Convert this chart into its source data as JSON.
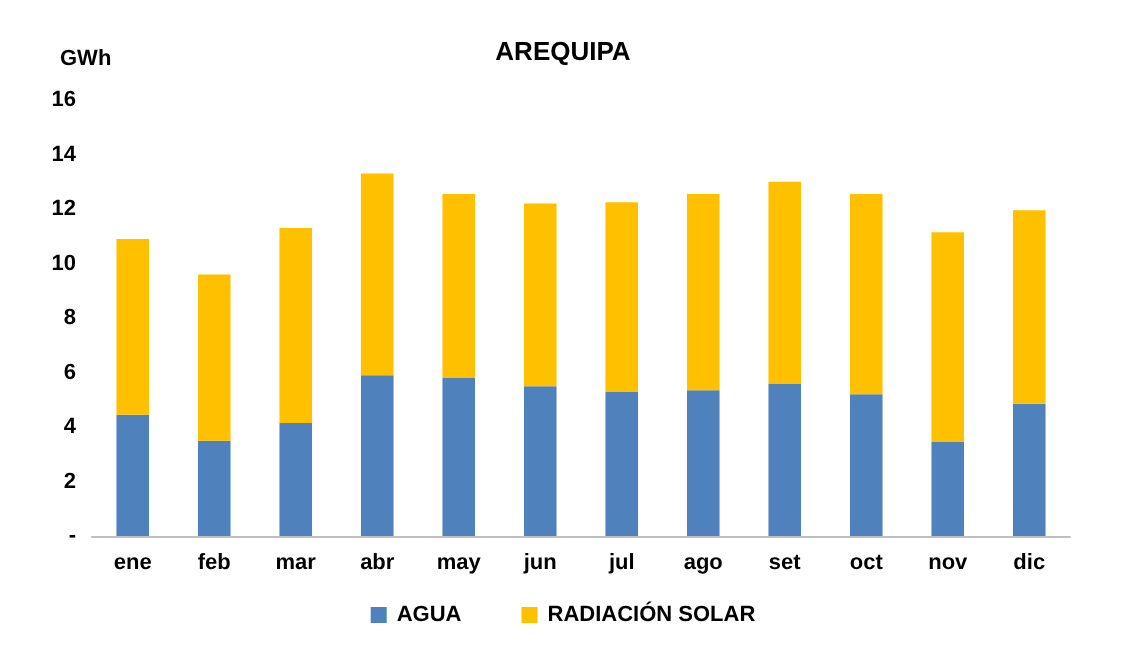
{
  "chart_data": {
    "type": "bar",
    "title": "AREQUIPA",
    "ylabel": "GWh",
    "stacked": true,
    "categories": [
      "ene",
      "feb",
      "mar",
      "abr",
      "may",
      "jun",
      "jul",
      "ago",
      "set",
      "oct",
      "nov",
      "dic"
    ],
    "series": [
      {
        "name": "AGUA",
        "color": "#4f81bd",
        "values": [
          4.45,
          3.5,
          4.15,
          5.9,
          5.8,
          5.5,
          5.3,
          5.35,
          5.6,
          5.2,
          3.45,
          4.85
        ]
      },
      {
        "name": "RADIACIÓN SOLAR",
        "color": "#ffc000",
        "values": [
          6.45,
          6.1,
          7.15,
          7.4,
          6.75,
          6.7,
          6.95,
          7.2,
          7.4,
          7.35,
          7.7,
          7.1
        ]
      }
    ],
    "ylim": [
      0,
      16
    ],
    "yticks": [
      {
        "value": 0,
        "label": "-"
      },
      2,
      4,
      6,
      8,
      10,
      12,
      14,
      16
    ],
    "grid": false,
    "legend": "bottom"
  }
}
